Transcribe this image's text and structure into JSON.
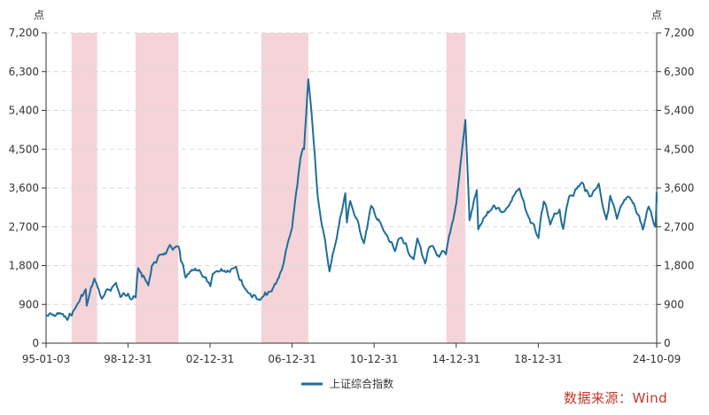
{
  "chart_data": {
    "type": "line",
    "y_unit_left": "点",
    "y_unit_right": "点",
    "ylim": [
      0,
      7200
    ],
    "y_ticks": [
      "0",
      "900",
      "1,800",
      "2,700",
      "3,600",
      "4,500",
      "5,400",
      "6,300",
      "7,200"
    ],
    "y_tick_values": [
      0,
      900,
      1800,
      2700,
      3600,
      4500,
      5400,
      6300,
      7200
    ],
    "xlim": [
      "1995-01-03",
      "2024-10-09"
    ],
    "x_ticks": [
      "95-01-03",
      "98-12-31",
      "02-12-31",
      "06-12-31",
      "10-12-31",
      "14-12-31",
      "18-12-31",
      "24-10-09"
    ],
    "x_tick_dates": [
      "1995-01-03",
      "1998-12-31",
      "2002-12-31",
      "2006-12-31",
      "2010-12-31",
      "2014-12-31",
      "2018-12-31",
      "2024-10-09"
    ],
    "grid": "horizontal-dashed",
    "legend_placement": "bottom-center",
    "shaded_periods": [
      [
        "1996-04-01",
        "1997-06-30"
      ],
      [
        "1999-05-15",
        "2001-06-15"
      ],
      [
        "2005-07-01",
        "2007-10-16"
      ],
      [
        "2014-07-10",
        "2015-06-12"
      ]
    ],
    "series": [
      {
        "name": "上证综合指数",
        "color": "#1f6e99",
        "points": [
          [
            "1995-01-03",
            640
          ],
          [
            "1995-06-01",
            630
          ],
          [
            "1995-09-01",
            700
          ],
          [
            "1996-01-19",
            537
          ],
          [
            "1996-06-01",
            800
          ],
          [
            "1996-12-10",
            1250
          ],
          [
            "1996-12-25",
            870
          ],
          [
            "1997-05-12",
            1500
          ],
          [
            "1997-09-23",
            1030
          ],
          [
            "1998-06-01",
            1400
          ],
          [
            "1998-08-18",
            1070
          ],
          [
            "1999-01-01",
            1150
          ],
          [
            "1999-05-17",
            1060
          ],
          [
            "1999-06-30",
            1740
          ],
          [
            "1999-12-27",
            1340
          ],
          [
            "2000-03-01",
            1800
          ],
          [
            "2000-08-01",
            2050
          ],
          [
            "2001-06-14",
            2245
          ],
          [
            "2001-07-30",
            1900
          ],
          [
            "2001-10-22",
            1520
          ],
          [
            "2002-06-25",
            1700
          ],
          [
            "2003-01-06",
            1320
          ],
          [
            "2003-04-01",
            1650
          ],
          [
            "2004-04-07",
            1780
          ],
          [
            "2004-09-10",
            1270
          ],
          [
            "2005-06-06",
            998
          ],
          [
            "2006-01-01",
            1200
          ],
          [
            "2006-07-01",
            1700
          ],
          [
            "2006-12-31",
            2675
          ],
          [
            "2007-05-30",
            4300
          ],
          [
            "2007-08-01",
            4500
          ],
          [
            "2007-10-16",
            6124
          ],
          [
            "2008-01-01",
            5000
          ],
          [
            "2008-04-01",
            3400
          ],
          [
            "2008-10-28",
            1664
          ],
          [
            "2009-08-04",
            3478
          ],
          [
            "2009-09-01",
            2800
          ],
          [
            "2009-11-01",
            3300
          ],
          [
            "2010-07-02",
            2319
          ],
          [
            "2010-11-08",
            3186
          ],
          [
            "2011-06-20",
            2600
          ],
          [
            "2012-01-06",
            2132
          ],
          [
            "2012-05-01",
            2450
          ],
          [
            "2012-12-04",
            1949
          ],
          [
            "2013-02-07",
            2432
          ],
          [
            "2013-06-25",
            1849
          ],
          [
            "2013-09-15",
            2240
          ],
          [
            "2014-03-01",
            2000
          ],
          [
            "2014-07-01",
            2060
          ],
          [
            "2014-12-31",
            3235
          ],
          [
            "2015-06-12",
            5178
          ],
          [
            "2015-08-26",
            2850
          ],
          [
            "2016-01-01",
            3550
          ],
          [
            "2016-01-27",
            2638
          ],
          [
            "2016-11-01",
            3200
          ],
          [
            "2017-05-01",
            3050
          ],
          [
            "2018-01-29",
            3587
          ],
          [
            "2018-06-01",
            3050
          ],
          [
            "2019-01-04",
            2440
          ],
          [
            "2019-04-08",
            3288
          ],
          [
            "2019-08-01",
            2750
          ],
          [
            "2020-01-14",
            3100
          ],
          [
            "2020-03-19",
            2650
          ],
          [
            "2020-07-01",
            3400
          ],
          [
            "2021-02-18",
            3730
          ],
          [
            "2021-07-01",
            3400
          ],
          [
            "2021-12-13",
            3700
          ],
          [
            "2022-04-27",
            2870
          ],
          [
            "2022-07-05",
            3420
          ],
          [
            "2022-10-31",
            2885
          ],
          [
            "2023-05-09",
            3400
          ],
          [
            "2023-12-01",
            2950
          ],
          [
            "2024-02-05",
            2635
          ],
          [
            "2024-05-20",
            3170
          ],
          [
            "2024-09-13",
            2704
          ],
          [
            "2024-09-24",
            2860
          ],
          [
            "2024-10-08",
            3490
          ],
          [
            "2024-10-09",
            3258
          ]
        ]
      }
    ]
  },
  "footer": {
    "source": "数据来源：Wind"
  }
}
